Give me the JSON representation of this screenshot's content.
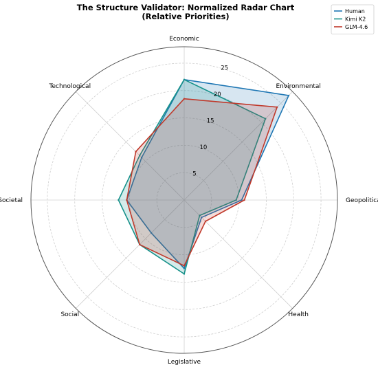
{
  "chart_data": {
    "type": "radar",
    "title": "The Structure Validator: Normalized Radar Chart",
    "subtitle": "(Relative Priorities)",
    "axes": [
      "Economic",
      "Environmental",
      "Geopolitical",
      "Health",
      "Legislative",
      "Social",
      "Societal",
      "Technological"
    ],
    "ring_ticks": [
      5,
      10,
      15,
      20,
      25
    ],
    "rlim": [
      0,
      28
    ],
    "grid": true,
    "legend_position": "top-right",
    "series": [
      {
        "name": "Human",
        "color": "#1f77b4",
        "values": [
          22.0,
          27.0,
          10.5,
          4.5,
          12.5,
          8.5,
          10.5,
          11.0
        ]
      },
      {
        "name": "Kimi K2",
        "color": "#16918a",
        "values": [
          22.0,
          21.0,
          9.5,
          4.0,
          13.5,
          11.5,
          12.0,
          11.5
        ]
      },
      {
        "name": "GLM-4.6",
        "color": "#c0392b",
        "values": [
          18.5,
          24.0,
          11.0,
          5.5,
          12.0,
          11.5,
          10.5,
          12.5
        ]
      }
    ]
  }
}
